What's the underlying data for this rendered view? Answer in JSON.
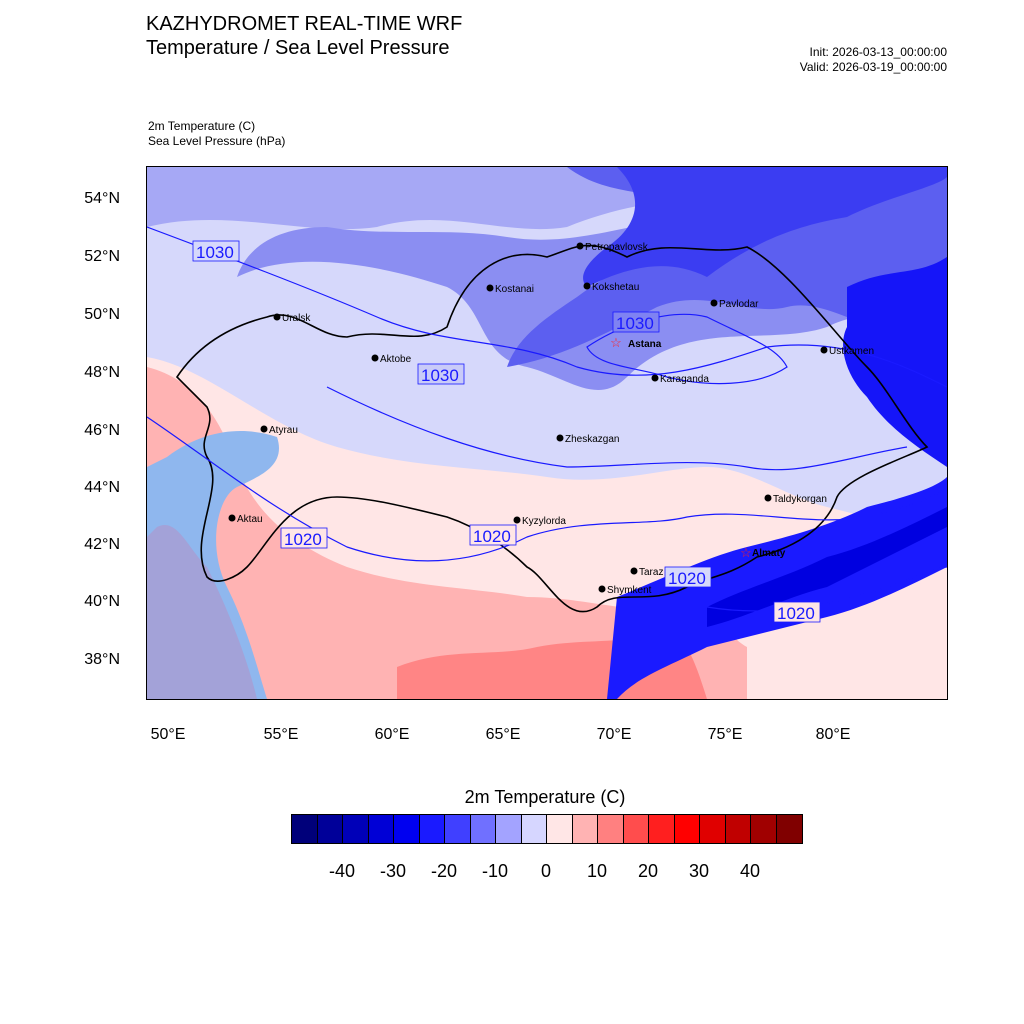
{
  "header": {
    "title": "KAZHYDROMET REAL-TIME WRF",
    "subtitle": "Temperature / Sea Level Pressure",
    "init": "Init: 2026-03-13_00:00:00",
    "valid": "Valid: 2026-03-19_00:00:00",
    "var1": "2m Temperature   (C)",
    "var2": "Sea Level Pressure   (hPa)"
  },
  "axes": {
    "lat_labels": [
      "54°N",
      "52°N",
      "50°N",
      "48°N",
      "46°N",
      "44°N",
      "42°N",
      "40°N",
      "38°N"
    ],
    "lon_labels": [
      "50°E",
      "55°E",
      "60°E",
      "65°E",
      "70°E",
      "75°E",
      "80°E"
    ]
  },
  "cities": [
    {
      "name": "Petropavlovsk",
      "marker": "dot"
    },
    {
      "name": "Kostanai",
      "marker": "dot"
    },
    {
      "name": "Kokshetau",
      "marker": "dot"
    },
    {
      "name": "Pavlodar",
      "marker": "dot"
    },
    {
      "name": "Uralsk",
      "marker": "dot"
    },
    {
      "name": "Astana",
      "marker": "star"
    },
    {
      "name": "Aktobe",
      "marker": "dot"
    },
    {
      "name": "Ustkamen",
      "marker": "dot"
    },
    {
      "name": "Karaganda",
      "marker": "dot"
    },
    {
      "name": "Atyrau",
      "marker": "dot"
    },
    {
      "name": "Zheskazgan",
      "marker": "dot"
    },
    {
      "name": "Taldykorgan",
      "marker": "dot"
    },
    {
      "name": "Aktau",
      "marker": "dot"
    },
    {
      "name": "Kyzylorda",
      "marker": "dot"
    },
    {
      "name": "Almaty",
      "marker": "star"
    },
    {
      "name": "Taraz",
      "marker": "dot"
    },
    {
      "name": "Shymkent",
      "marker": "dot"
    }
  ],
  "isobar_labels": [
    "1030",
    "1030",
    "1030",
    "1020",
    "1020",
    "1020",
    "1020"
  ],
  "colorbar": {
    "title": "2m Temperature  (C)",
    "colors": [
      "#00007a",
      "#000099",
      "#0000b8",
      "#0000d6",
      "#0000f0",
      "#1a1aff",
      "#4040ff",
      "#7070ff",
      "#a3a3ff",
      "#d6d6ff",
      "#ffe6e6",
      "#ffb3b3",
      "#ff8080",
      "#ff4d4d",
      "#ff1f1f",
      "#ff0000",
      "#e00000",
      "#c00000",
      "#a00000",
      "#800000"
    ],
    "tick_labels": [
      "-40",
      "-30",
      "-20",
      "-10",
      "0",
      "10",
      "20",
      "30",
      "40"
    ]
  }
}
